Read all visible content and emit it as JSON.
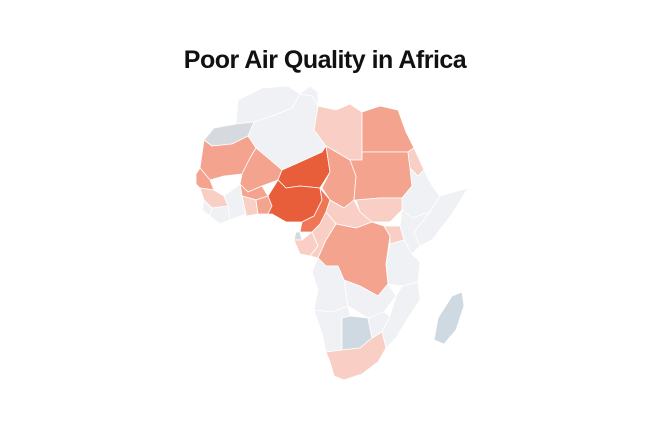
{
  "title": "Poor Air Quality in Africa",
  "colors": {
    "no_data": "#eff1f4",
    "grey": "#d6d9de",
    "level_1": "#f9cfc5",
    "level_2": "#f4a38f",
    "level_3": "#ef7756",
    "level_4": "#e85e3a",
    "blue": "#cfd9e2"
  },
  "regions": [
    {
      "name": "morocco",
      "level": "no_data"
    },
    {
      "name": "western-sahara",
      "level": "grey"
    },
    {
      "name": "algeria",
      "level": "no_data"
    },
    {
      "name": "tunisia",
      "level": "no_data"
    },
    {
      "name": "libya",
      "level": "level_1"
    },
    {
      "name": "egypt",
      "level": "level_2"
    },
    {
      "name": "mauritania",
      "level": "level_2"
    },
    {
      "name": "mali",
      "level": "level_2"
    },
    {
      "name": "niger",
      "level": "level_4"
    },
    {
      "name": "chad",
      "level": "level_2"
    },
    {
      "name": "sudan",
      "level": "level_2"
    },
    {
      "name": "south-sudan",
      "level": "level_1"
    },
    {
      "name": "eritrea",
      "level": "level_1"
    },
    {
      "name": "ethiopia",
      "level": "no_data"
    },
    {
      "name": "somalia",
      "level": "no_data"
    },
    {
      "name": "senegal",
      "level": "level_2"
    },
    {
      "name": "guinea",
      "level": "level_1"
    },
    {
      "name": "sierra-leone",
      "level": "no_data"
    },
    {
      "name": "liberia",
      "level": "no_data"
    },
    {
      "name": "cote-divoire",
      "level": "no_data"
    },
    {
      "name": "burkina-faso",
      "level": "level_2"
    },
    {
      "name": "ghana",
      "level": "level_1"
    },
    {
      "name": "togo-benin",
      "level": "level_2"
    },
    {
      "name": "nigeria",
      "level": "level_4"
    },
    {
      "name": "cameroon",
      "level": "level_3"
    },
    {
      "name": "central-african-republic",
      "level": "level_1"
    },
    {
      "name": "gabon",
      "level": "level_1"
    },
    {
      "name": "equatorial-guinea",
      "level": "grey"
    },
    {
      "name": "republic-of-congo",
      "level": "level_1"
    },
    {
      "name": "dr-congo",
      "level": "level_2"
    },
    {
      "name": "uganda",
      "level": "level_1"
    },
    {
      "name": "kenya",
      "level": "no_data"
    },
    {
      "name": "tanzania",
      "level": "no_data"
    },
    {
      "name": "angola",
      "level": "no_data"
    },
    {
      "name": "zambia",
      "level": "no_data"
    },
    {
      "name": "mozambique",
      "level": "no_data"
    },
    {
      "name": "namibia",
      "level": "no_data"
    },
    {
      "name": "botswana",
      "level": "blue"
    },
    {
      "name": "zimbabwe",
      "level": "no_data"
    },
    {
      "name": "south-africa",
      "level": "level_1"
    },
    {
      "name": "madagascar",
      "level": "blue"
    }
  ]
}
